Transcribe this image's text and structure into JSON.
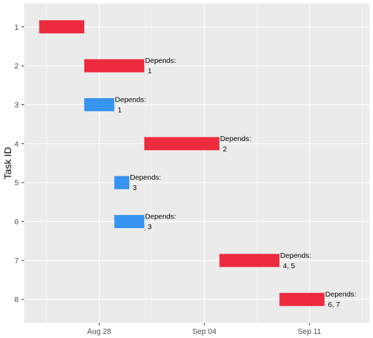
{
  "chart_data": {
    "type": "gantt",
    "ylabel": "Task ID",
    "xlabel": "",
    "x_ticks": [
      "Aug 28",
      "Sep 04",
      "Sep 11"
    ],
    "x_tick_dates": [
      "2016-08-28",
      "2016-09-04",
      "2016-09-11"
    ],
    "xlim": [
      "2016-08-23",
      "2016-09-15"
    ],
    "dependency_prefix": "Depends:",
    "colors": {
      "critical": "#EE2A3E",
      "normal": "#3794F0",
      "panel": "#EBEBEB",
      "grid": "#FFFFFF"
    },
    "tasks": [
      {
        "id": "1",
        "start": "2016-08-24",
        "end": "2016-08-27",
        "critical": true,
        "depends": ""
      },
      {
        "id": "2",
        "start": "2016-08-27",
        "end": "2016-08-31",
        "critical": true,
        "depends": "1"
      },
      {
        "id": "3",
        "start": "2016-08-27",
        "end": "2016-08-29",
        "critical": false,
        "depends": "1"
      },
      {
        "id": "4",
        "start": "2016-08-31",
        "end": "2016-09-05",
        "critical": true,
        "depends": "2"
      },
      {
        "id": "5",
        "start": "2016-08-29",
        "end": "2016-08-30",
        "critical": false,
        "depends": "3"
      },
      {
        "id": "6",
        "start": "2016-08-29",
        "end": "2016-08-31",
        "critical": false,
        "depends": "3"
      },
      {
        "id": "7",
        "start": "2016-09-05",
        "end": "2016-09-09",
        "critical": true,
        "depends": "4, 5"
      },
      {
        "id": "8",
        "start": "2016-09-09",
        "end": "2016-09-12",
        "critical": true,
        "depends": "6, 7"
      }
    ]
  }
}
